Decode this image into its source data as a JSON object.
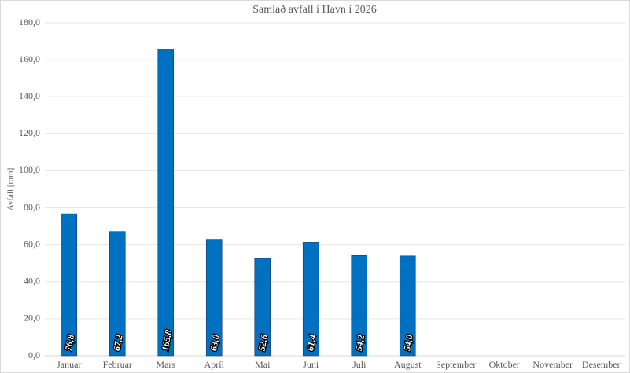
{
  "chart_data": {
    "type": "bar",
    "title": "Samlað avfall í Havn í 2026",
    "y_label": "Avfall [mm]",
    "categories": [
      "Januar",
      "Februar",
      "Mars",
      "Apríl",
      "Mai",
      "Juni",
      "Juli",
      "August",
      "September",
      "Oktober",
      "November",
      "Desember"
    ],
    "values": [
      76.8,
      67.2,
      165.8,
      63.0,
      52.6,
      61.4,
      54.2,
      54.0,
      null,
      null,
      null,
      null
    ],
    "value_labels": [
      "76,8",
      "67,2",
      "165,8",
      "63,0",
      "52,6",
      "61,4",
      "54,2",
      "54,0",
      null,
      null,
      null,
      null
    ],
    "color": "#0070c0",
    "ylim": [
      0,
      180
    ],
    "yticks": [
      {
        "value": 0,
        "label": "0,0"
      },
      {
        "value": 20,
        "label": "20,0"
      },
      {
        "value": 40,
        "label": "40,0"
      },
      {
        "value": 60,
        "label": "60,0"
      },
      {
        "value": 80,
        "label": "80,0"
      },
      {
        "value": 100,
        "label": "100,0"
      },
      {
        "value": 120,
        "label": "120,0"
      },
      {
        "value": 140,
        "label": "140,0"
      },
      {
        "value": 160,
        "label": "160,0"
      },
      {
        "value": 180,
        "label": "180,0"
      }
    ],
    "grid": true
  }
}
